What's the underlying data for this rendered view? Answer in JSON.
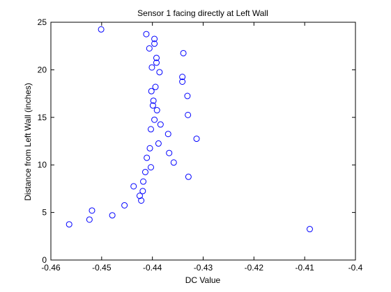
{
  "chart_data": {
    "type": "scatter",
    "title": "Sensor 1 facing directly at Left Wall",
    "xlabel": "DC Value",
    "ylabel": "Distance from Left Wall (inches)",
    "xlim": [
      -0.46,
      -0.4
    ],
    "ylim": [
      0,
      25
    ],
    "x_ticks": [
      -0.46,
      -0.45,
      -0.44,
      -0.43,
      -0.42,
      -0.41,
      -0.4
    ],
    "x_tick_labels": [
      "-0.46",
      "-0.45",
      "-0.44",
      "-0.43",
      "-0.42",
      "-0.41",
      "-0.4"
    ],
    "y_ticks": [
      0,
      5,
      10,
      15,
      20,
      25
    ],
    "y_tick_labels": [
      "0",
      "5",
      "10",
      "15",
      "20",
      "25"
    ],
    "grid": false,
    "marker": "circle",
    "marker_color": "#0000ff",
    "series": [
      {
        "points": [
          [
            -0.4564,
            3.75
          ],
          [
            -0.4524,
            4.25
          ],
          [
            -0.4519,
            5.2
          ],
          [
            -0.4479,
            4.7
          ],
          [
            -0.4455,
            5.75
          ],
          [
            -0.4437,
            7.75
          ],
          [
            -0.4425,
            6.75
          ],
          [
            -0.4422,
            6.25
          ],
          [
            -0.4419,
            7.25
          ],
          [
            -0.4418,
            8.25
          ],
          [
            -0.4414,
            9.25
          ],
          [
            -0.4411,
            10.75
          ],
          [
            -0.4405,
            11.75
          ],
          [
            -0.4403,
            9.75
          ],
          [
            -0.4403,
            13.75
          ],
          [
            -0.4402,
            17.75
          ],
          [
            -0.4399,
            16.25
          ],
          [
            -0.4398,
            16.75
          ],
          [
            -0.4396,
            14.75
          ],
          [
            -0.4394,
            18.2
          ],
          [
            -0.4391,
            15.75
          ],
          [
            -0.4388,
            12.25
          ],
          [
            -0.4384,
            14.25
          ],
          [
            -0.4386,
            19.75
          ],
          [
            -0.4392,
            20.75
          ],
          [
            -0.4392,
            21.25
          ],
          [
            -0.4401,
            20.25
          ],
          [
            -0.4396,
            22.75
          ],
          [
            -0.4396,
            23.25
          ],
          [
            -0.4406,
            22.25
          ],
          [
            -0.4412,
            23.75
          ],
          [
            -0.4501,
            24.25
          ],
          [
            -0.4367,
            11.25
          ],
          [
            -0.4369,
            13.25
          ],
          [
            -0.4358,
            10.25
          ],
          [
            -0.4341,
            18.75
          ],
          [
            -0.4341,
            19.25
          ],
          [
            -0.4339,
            21.75
          ],
          [
            -0.4331,
            17.25
          ],
          [
            -0.433,
            15.25
          ],
          [
            -0.4329,
            8.75
          ],
          [
            -0.4313,
            12.75
          ],
          [
            -0.409,
            3.25
          ]
        ]
      }
    ]
  }
}
